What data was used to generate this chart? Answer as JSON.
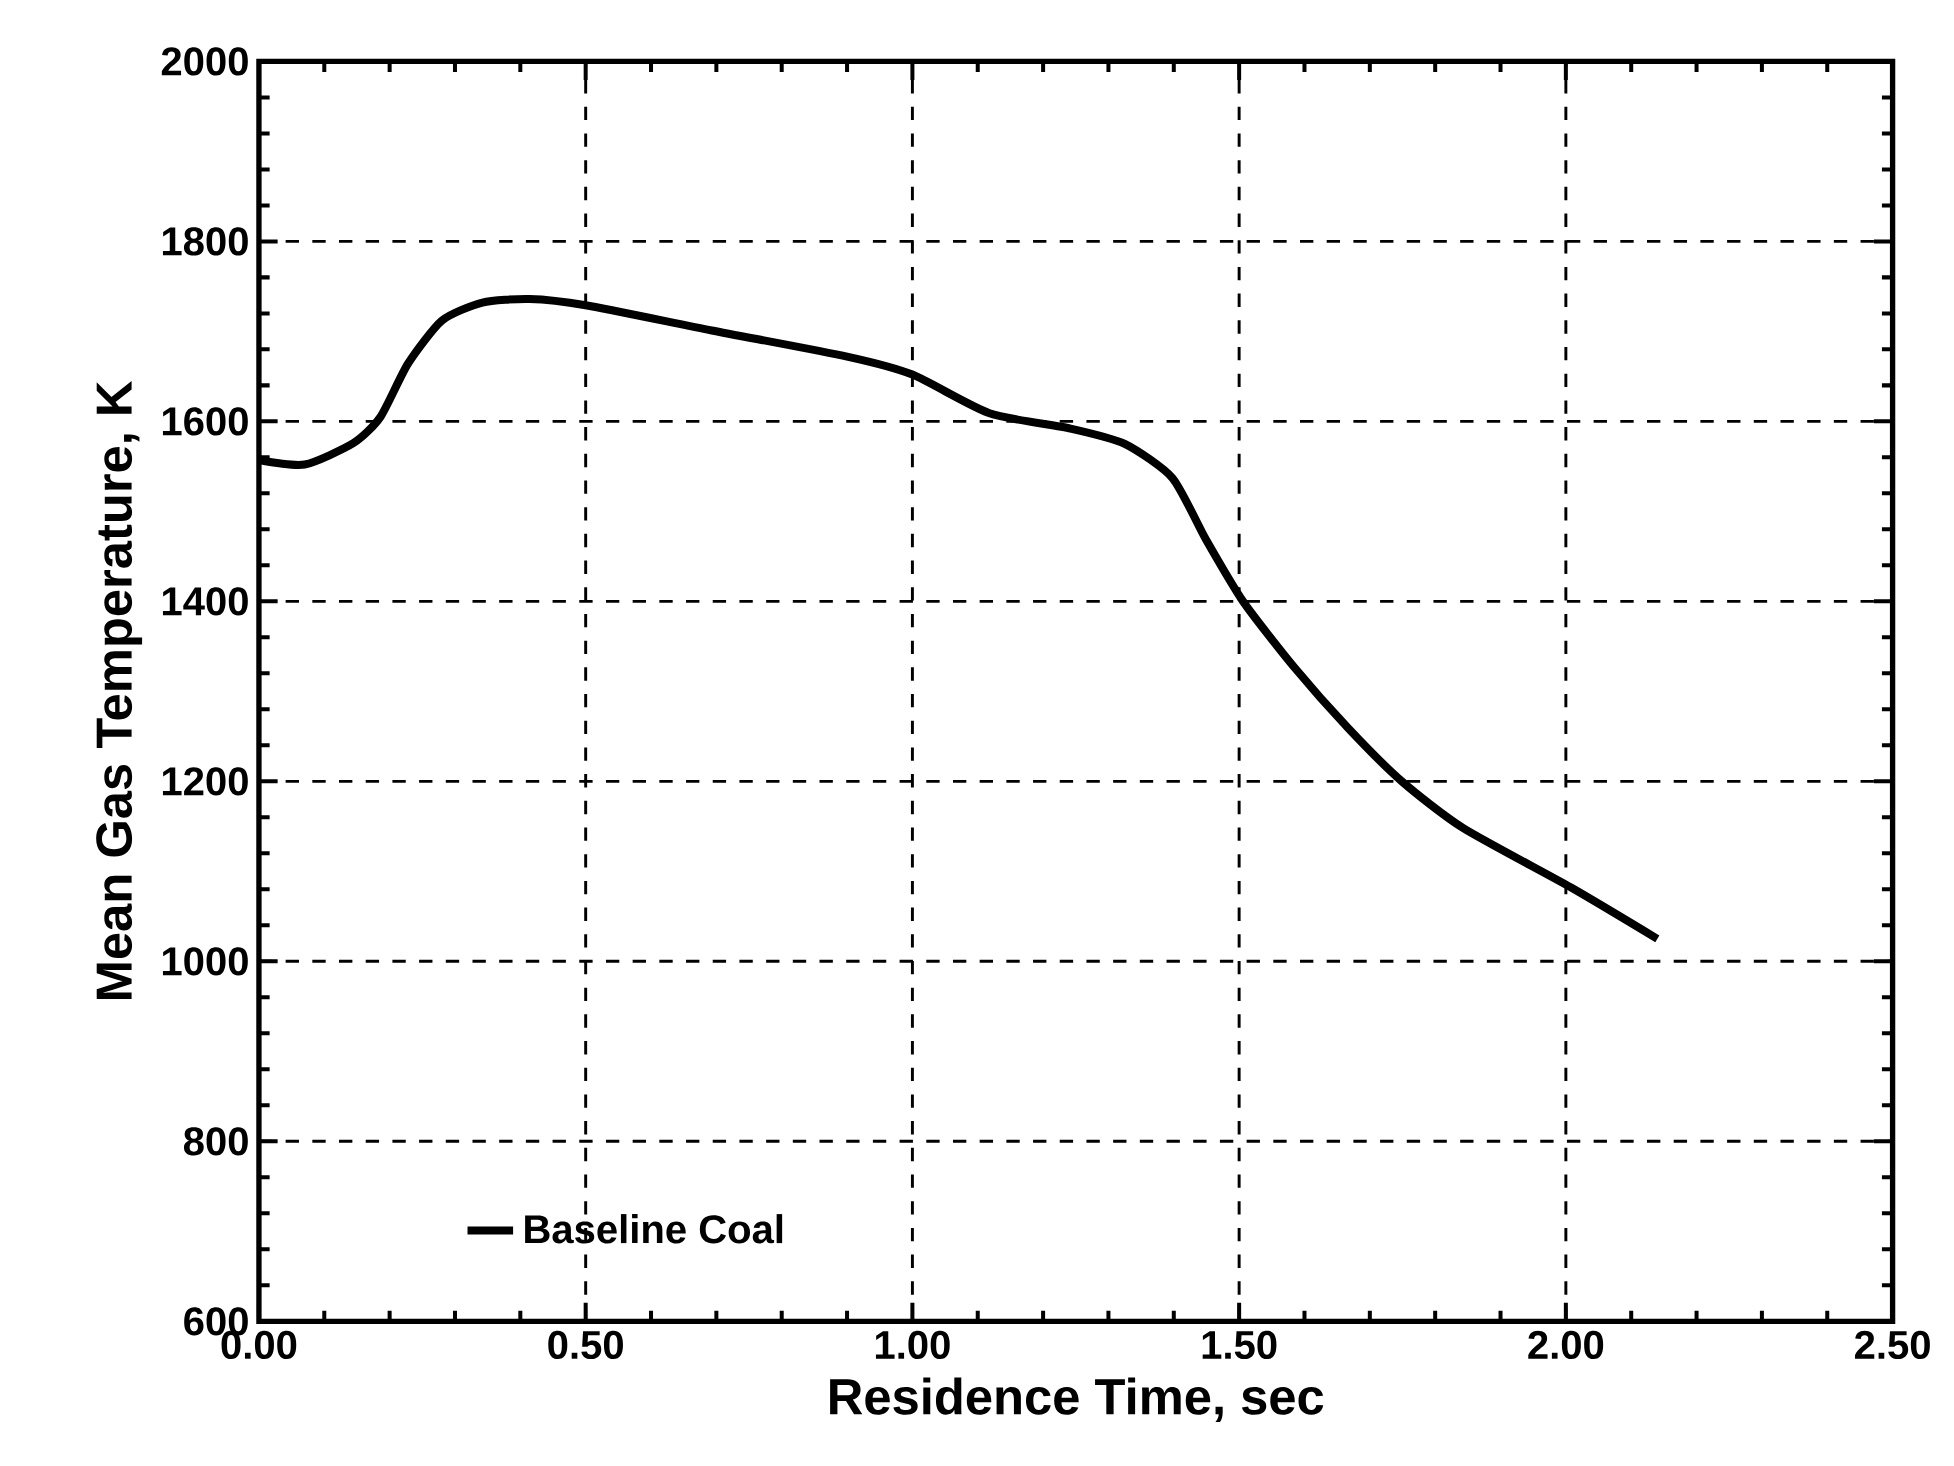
{
  "chart_data": {
    "type": "line",
    "xlabel": "Residence Time, sec",
    "ylabel": "Mean Gas Temperature, K",
    "xlim": [
      0,
      2.5
    ],
    "ylim": [
      600,
      2000
    ],
    "xticks": [
      {
        "value": 0,
        "label": "0.00"
      },
      {
        "value": 0.5,
        "label": "0.50"
      },
      {
        "value": 1,
        "label": "1.00"
      },
      {
        "value": 1.5,
        "label": "1.50"
      },
      {
        "value": 2,
        "label": "2.00"
      },
      {
        "value": 2.5,
        "label": "2.50"
      }
    ],
    "yticks": [
      600,
      800,
      1000,
      1200,
      1400,
      1600,
      1800,
      2000
    ],
    "grid": true,
    "legend": "bottom left",
    "line_style": "solid",
    "marker": "none",
    "series": [
      {
        "name": "Baseline Coal",
        "color": "#000000",
        "x": [
          0,
          0.07,
          0.145,
          0.186,
          0.228,
          0.28,
          0.342,
          0.414,
          0.5,
          0.693,
          0.9,
          1.0,
          1.118,
          1.242,
          1.325,
          1.398,
          1.449,
          1.506,
          1.584,
          1.667,
          1.749,
          1.843,
          2.008,
          2.14
        ],
        "values": [
          1557,
          1552,
          1576,
          1605,
          1664,
          1712,
          1732,
          1736,
          1729,
          1701,
          1672,
          1652,
          1609,
          1592,
          1575,
          1537,
          1469,
          1400,
          1327,
          1259,
          1200,
          1148,
          1082,
          1025
        ]
      }
    ]
  }
}
